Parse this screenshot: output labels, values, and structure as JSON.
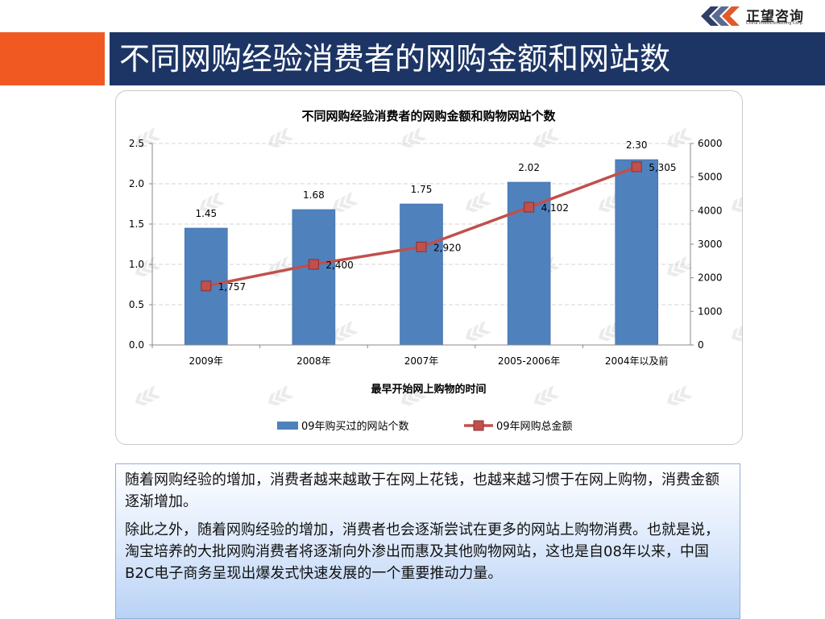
{
  "logo": {
    "name_cn": "正望咨询",
    "name_en": "China IntelliConsulting Corp."
  },
  "page_title": "不同网购经验消费者的网购金额和网站数",
  "body": {
    "paragraphs": [
      "随着网购经验的增加，消费者越来越敢于在网上花钱，也越来越习惯于在网上购物，消费金额逐渐增加。",
      "除此之外，随着网购经验的增加，消费者也会逐渐尝试在更多的网站上购物消费。也就是说，淘宝培养的大批网购消费者将逐渐向外渗出而惠及其他购物网站，这也是自08年以来，中国B2C电子商务呈现出爆发式快速发展的一个重要推动力量。"
    ]
  },
  "chart_data": {
    "type": "bar",
    "title": "不同网购经验消费者的网购金额和购物网站个数",
    "xlabel": "最早开始网上购物的时间",
    "ylabel": "",
    "y2label": "",
    "categories": [
      "2009年",
      "2008年",
      "2007年",
      "2005-2006年",
      "2004年以及前"
    ],
    "ylim": [
      0,
      2.5
    ],
    "yticks": [
      "0.0",
      "0.5",
      "1.0",
      "1.5",
      "2.0",
      "2.5"
    ],
    "y2lim": [
      0,
      6000
    ],
    "y2ticks": [
      "0",
      "1000",
      "2000",
      "3000",
      "4000",
      "5000",
      "6000"
    ],
    "grid": true,
    "legend_position": "bottom",
    "series": [
      {
        "name": "09年购买过的网站个数",
        "type": "bar",
        "axis": "left",
        "color": "#4f81bd",
        "values": [
          1.45,
          1.68,
          1.75,
          2.02,
          2.3
        ],
        "labels": [
          "1.45",
          "1.68",
          "1.75",
          "2.02",
          "2.30"
        ]
      },
      {
        "name": "09年网购总金额",
        "type": "line",
        "axis": "right",
        "color": "#c0504d",
        "values": [
          1757,
          2400,
          2920,
          4102,
          5305
        ],
        "labels": [
          "1,757",
          "2,400",
          "2,920",
          "4,102",
          "5,305"
        ]
      }
    ]
  }
}
